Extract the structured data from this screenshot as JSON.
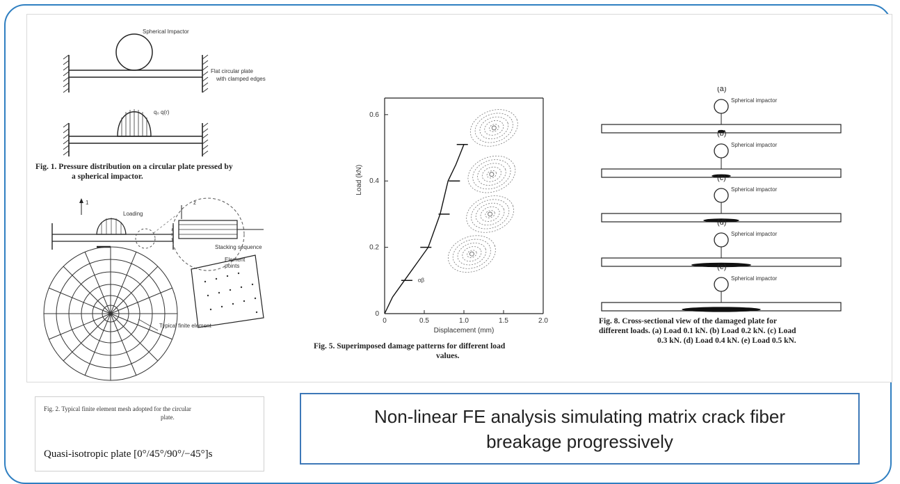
{
  "fig1": {
    "impactor_label": "Spherical Impactor",
    "plate_label_1": "Flat circular plate",
    "plate_label_2": "with clamped edges",
    "pressure_label": "q₀ q(r)",
    "caption_1": "Fig. 1. Pressure distribution on a circular plate pressed by",
    "caption_2": "a spherical impactor."
  },
  "fig2": {
    "label_z": "z",
    "label_1": "1",
    "loading_label": "Loading",
    "stacking_label": "Stacking sequence",
    "element_label_1": "Element",
    "element_label_2": "points",
    "element_note": "Typical finite element"
  },
  "fig5": {
    "ylabel": "Load (kN)",
    "xlabel": "Displacement (mm)",
    "y_ticks": [
      "0",
      "0.2",
      "0.4",
      "0.6"
    ],
    "x_ticks": [
      "0",
      "0.5",
      "1.0",
      "1.5",
      "2.0"
    ],
    "annotation": "αβ",
    "caption_1": "Fig. 5. Superimposed damage patterns for different load",
    "caption_2": "values."
  },
  "chart_data": {
    "type": "line",
    "xlabel": "Displacement (mm)",
    "ylabel": "Load (kN)",
    "xlim": [
      0,
      2.0
    ],
    "ylim": [
      0,
      0.65
    ],
    "grid": false,
    "series": [
      {
        "x": [
          0,
          0.1,
          0.25,
          0.4,
          0.55,
          0.7,
          0.8,
          0.9,
          1.0
        ],
        "y": [
          0,
          0.05,
          0.1,
          0.15,
          0.2,
          0.3,
          0.4,
          0.45,
          0.51
        ]
      }
    ],
    "markers": [
      {
        "x": 0.28,
        "y": 0.1
      },
      {
        "x": 0.52,
        "y": 0.2
      },
      {
        "x": 0.75,
        "y": 0.3
      },
      {
        "x": 0.88,
        "y": 0.4
      },
      {
        "x": 0.98,
        "y": 0.51
      }
    ],
    "damage_patterns": [
      {
        "x": 1.38,
        "y": 0.56
      },
      {
        "x": 1.35,
        "y": 0.42
      },
      {
        "x": 1.33,
        "y": 0.3
      },
      {
        "x": 1.1,
        "y": 0.18
      }
    ]
  },
  "fig8": {
    "rows": [
      {
        "letter": "(a)",
        "label": "Spherical impactor",
        "damage": 0.03
      },
      {
        "letter": "(b)",
        "label": "Spherical impactor",
        "damage": 0.08
      },
      {
        "letter": "(c)",
        "label": "Spherical impactor",
        "damage": 0.15
      },
      {
        "letter": "(d)",
        "label": "Spherical impactor",
        "damage": 0.25
      },
      {
        "letter": "(e)",
        "label": "Spherical impactor",
        "damage": 0.33
      }
    ],
    "caption_1": "Fig. 8. Cross-sectional view of the damaged plate for",
    "caption_2": "different loads. (a) Load 0.1 kN. (b) Load 0.2 kN. (c) Load",
    "caption_3": "0.3 kN. (d) Load 0.4 kN. (e) Load 0.5 kN."
  },
  "bottom_left": {
    "fig2_caption_1": "Fig. 2. Typical finite element mesh adopted for the circular",
    "fig2_caption_2": "plate.",
    "laminate": "Quasi-isotropic plate [0°/45°/90°/−45°]s"
  },
  "summary": "Non-linear FE analysis simulating matrix crack fiber breakage progressively",
  "colors": {
    "frame": "#2f7fc1",
    "box_border": "#3d78b8"
  }
}
